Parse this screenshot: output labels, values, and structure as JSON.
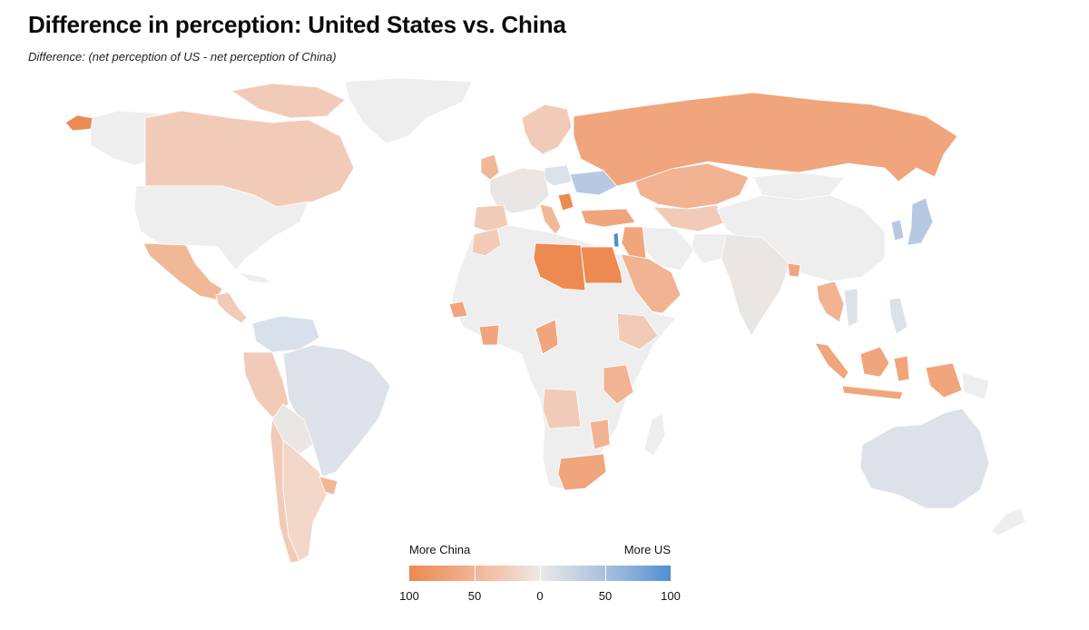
{
  "header": {
    "title": "Difference in perception: United States vs. China",
    "subtitle": "Difference: (net perception of US - net perception of China)"
  },
  "legend": {
    "left_label": "More China",
    "right_label": "More US",
    "ticks": [
      "100",
      "50",
      "0",
      "50",
      "100"
    ],
    "colors": [
      "#ec8a52",
      "#f0a57c",
      "#f2c4ad",
      "#ece9e6",
      "#bfcde4",
      "#8fb1db",
      "#4f8fcf"
    ]
  },
  "palette": {
    "no_data": "#eeeeee",
    "strong_china": "#ec8a52",
    "china": "#f0a57c",
    "mild_china": "#f2cbb8",
    "neutral": "#eceae8",
    "mild_us": "#dde1ea",
    "us": "#b7c9e2"
  }
}
